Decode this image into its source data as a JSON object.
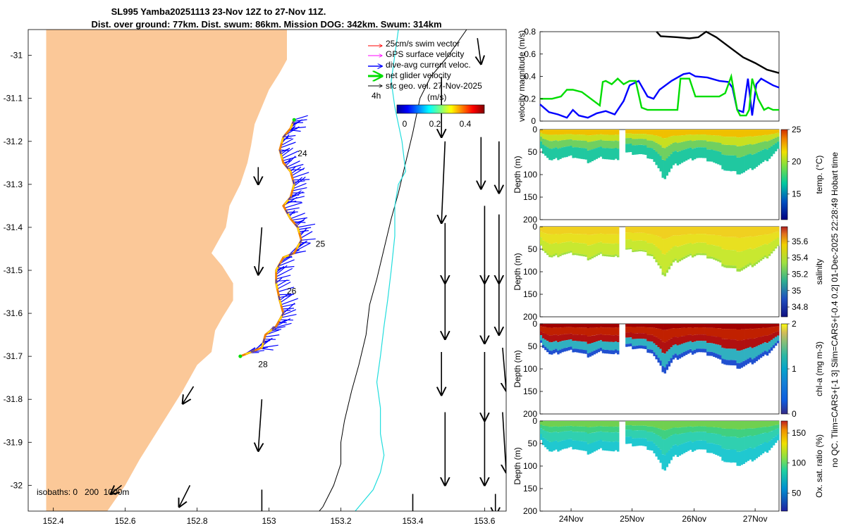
{
  "title_line1": "SL995 Yamba20251113 23-Nov 12Z to 27-Nov 11Z.",
  "title_line2": "Dist. over ground: 77km. Dist. swum: 86km. Mission DOG: 342km. Swum: 314km",
  "side_label_top": "no QC. Tlim=CARS+[-1 3] Slim=CARS+[-0.4 0.2] 01-Dec-2025 22:28:49 Hobart time",
  "colors": {
    "land": "#fbc898",
    "track_blue": "#0000ff",
    "track_green": "#00dd00",
    "track_orange": "#f08000",
    "track_yellow": "#ffee00",
    "isobath_200": "#000000",
    "isobath_1000": "#22dddd",
    "swim_vector": "#ff0000",
    "gps_vector": "#ff00ff",
    "current_vector": "#0000ff",
    "net_vector": "#00dd00",
    "geo_vector": "#000000"
  },
  "chart_data": [
    {
      "type": "scatter",
      "name": "map",
      "xlabel": "",
      "ylabel": "",
      "xlim": [
        152.33,
        153.66
      ],
      "ylim": [
        -32.06,
        -30.94
      ],
      "x_ticks": [
        "152.4",
        "152.6",
        "152.8",
        "153",
        "153.2",
        "153.4",
        "153.6"
      ],
      "x_tick_values": [
        152.4,
        152.6,
        152.8,
        153.0,
        153.2,
        153.4,
        153.6
      ],
      "y_ticks": [
        "-31",
        "-31.1",
        "-31.2",
        "-31.3",
        "-31.4",
        "-31.5",
        "-31.6",
        "-31.7",
        "-31.8",
        "-31.9",
        "-32"
      ],
      "y_tick_values": [
        -31,
        -31.1,
        -31.2,
        -31.3,
        -31.4,
        -31.5,
        -31.6,
        -31.7,
        -31.8,
        -31.9,
        -32
      ],
      "coastline": [
        [
          152.38,
          -30.94
        ],
        [
          152.38,
          -32.06
        ],
        [
          152.55,
          -32.06
        ],
        [
          152.6,
          -32.0
        ],
        [
          152.64,
          -31.94
        ],
        [
          152.7,
          -31.86
        ],
        [
          152.76,
          -31.78
        ],
        [
          152.8,
          -31.72
        ],
        [
          152.84,
          -31.69
        ],
        [
          152.85,
          -31.64
        ],
        [
          152.87,
          -31.61
        ],
        [
          152.9,
          -31.57
        ],
        [
          152.9,
          -31.53
        ],
        [
          152.87,
          -31.49
        ],
        [
          152.84,
          -31.46
        ],
        [
          152.86,
          -31.43
        ],
        [
          152.88,
          -31.4
        ],
        [
          152.89,
          -31.35
        ],
        [
          152.92,
          -31.3
        ],
        [
          152.94,
          -31.25
        ],
        [
          152.95,
          -31.21
        ],
        [
          152.96,
          -31.16
        ],
        [
          152.98,
          -31.12
        ],
        [
          153.0,
          -31.08
        ],
        [
          153.03,
          -31.04
        ],
        [
          153.05,
          -31.01
        ],
        [
          153.05,
          -30.94
        ]
      ],
      "isobath_200": [
        [
          153.55,
          -30.94
        ],
        [
          153.5,
          -31.0
        ],
        [
          153.45,
          -31.05
        ],
        [
          153.42,
          -31.1
        ],
        [
          153.4,
          -31.18
        ],
        [
          153.38,
          -31.25
        ],
        [
          153.36,
          -31.32
        ],
        [
          153.34,
          -31.38
        ],
        [
          153.32,
          -31.45
        ],
        [
          153.3,
          -31.52
        ],
        [
          153.28,
          -31.58
        ],
        [
          153.27,
          -31.65
        ],
        [
          153.25,
          -31.72
        ],
        [
          153.23,
          -31.78
        ],
        [
          153.21,
          -31.85
        ],
        [
          153.2,
          -31.9
        ],
        [
          153.2,
          -31.95
        ],
        [
          153.18,
          -32.0
        ],
        [
          153.15,
          -32.05
        ],
        [
          153.14,
          -32.06
        ]
      ],
      "isobath_1000": [
        [
          153.36,
          -30.94
        ],
        [
          153.35,
          -31.0
        ],
        [
          153.34,
          -31.06
        ],
        [
          153.35,
          -31.12
        ],
        [
          153.37,
          -31.2
        ],
        [
          153.38,
          -31.27
        ],
        [
          153.36,
          -31.3
        ],
        [
          153.35,
          -31.35
        ],
        [
          153.35,
          -31.42
        ],
        [
          153.34,
          -31.5
        ],
        [
          153.33,
          -31.57
        ],
        [
          153.32,
          -31.63
        ],
        [
          153.31,
          -31.7
        ],
        [
          153.3,
          -31.76
        ],
        [
          153.31,
          -31.82
        ],
        [
          153.31,
          -31.88
        ],
        [
          153.32,
          -31.93
        ],
        [
          153.31,
          -31.97
        ],
        [
          153.29,
          -32.01
        ],
        [
          153.25,
          -32.05
        ],
        [
          153.24,
          -32.06
        ]
      ],
      "glider_track": [
        [
          153.07,
          -31.15
        ],
        [
          153.06,
          -31.17
        ],
        [
          153.04,
          -31.19
        ],
        [
          153.03,
          -31.22
        ],
        [
          153.04,
          -31.25
        ],
        [
          153.06,
          -31.27
        ],
        [
          153.07,
          -31.3
        ],
        [
          153.06,
          -31.33
        ],
        [
          153.04,
          -31.35
        ],
        [
          153.06,
          -31.38
        ],
        [
          153.08,
          -31.4
        ],
        [
          153.09,
          -31.43
        ],
        [
          153.07,
          -31.46
        ],
        [
          153.04,
          -31.47
        ],
        [
          153.02,
          -31.5
        ],
        [
          153.02,
          -31.53
        ],
        [
          153.03,
          -31.57
        ],
        [
          153.04,
          -31.6
        ],
        [
          153.02,
          -31.63
        ],
        [
          152.99,
          -31.65
        ],
        [
          152.98,
          -31.68
        ],
        [
          152.95,
          -31.69
        ],
        [
          152.92,
          -31.7
        ]
      ],
      "track_labels": [
        {
          "lon": 153.08,
          "lat": -31.235,
          "text": "24"
        },
        {
          "lon": 153.13,
          "lat": -31.445,
          "text": "25"
        },
        {
          "lon": 153.05,
          "lat": -31.555,
          "text": "26"
        },
        {
          "lon": 152.97,
          "lat": -31.725,
          "text": "28"
        }
      ],
      "geo_arrows": [
        [
          152.97,
          -31.26,
          0.0,
          -0.04
        ],
        [
          153.48,
          -31.05,
          0.0,
          -0.14
        ],
        [
          153.58,
          -30.96,
          0.01,
          -0.06
        ],
        [
          153.49,
          -31.2,
          -0.01,
          -0.19
        ],
        [
          153.59,
          -31.19,
          0.0,
          -0.12
        ],
        [
          153.64,
          -31.2,
          0.0,
          -0.12
        ],
        [
          152.98,
          -31.4,
          -0.01,
          -0.11
        ],
        [
          153.49,
          -31.39,
          0.0,
          -0.14
        ],
        [
          153.6,
          -31.35,
          0.0,
          -0.18
        ],
        [
          153.64,
          -31.37,
          0.0,
          -0.16
        ],
        [
          153.49,
          -31.52,
          0.0,
          -0.14
        ],
        [
          153.6,
          -31.51,
          0.0,
          -0.16
        ],
        [
          153.64,
          -31.51,
          0.0,
          -0.14
        ],
        [
          153.48,
          -31.69,
          0.0,
          -0.1
        ],
        [
          153.6,
          -31.69,
          0.0,
          -0.16
        ],
        [
          153.65,
          -31.68,
          0.01,
          -0.1
        ],
        [
          152.79,
          -31.77,
          -0.03,
          -0.04
        ],
        [
          152.98,
          -31.8,
          -0.01,
          -0.12
        ],
        [
          153.49,
          -31.83,
          0.0,
          -0.17
        ],
        [
          153.6,
          -31.83,
          0.0,
          -0.17
        ],
        [
          153.65,
          -31.83,
          0.01,
          -0.14
        ],
        [
          152.78,
          -32.0,
          -0.03,
          -0.05
        ],
        [
          152.59,
          -32.0,
          -0.03,
          -0.02
        ],
        [
          152.98,
          -32.01,
          0.0,
          -0.12
        ],
        [
          153.4,
          -32.02,
          0.0,
          -0.06
        ],
        [
          153.63,
          -32.02,
          0.0,
          -0.05
        ]
      ],
      "colorbar_title": "(m/s)",
      "colorbar_ticks": [
        "0",
        "0.2",
        "0.4"
      ],
      "legend": [
        "25cm/s swim vector",
        "GPS surface velocity",
        "dive-avg current veloc.",
        "net glider velocity",
        "sfc geo. vel. 27-Nov-2025"
      ],
      "legend_extra": "4h",
      "isobath_note": "isobaths: 0   200  1000m"
    },
    {
      "type": "line",
      "name": "velocity",
      "ylabel": "velocity magnitude (m/s)",
      "ylim": [
        0,
        0.8
      ],
      "y_ticks": [
        "0",
        "0.2",
        "0.4",
        "0.6",
        "0.8"
      ],
      "xlim": [
        0,
        4
      ],
      "series": [
        {
          "name": "sfc geo",
          "color": "#000000",
          "x": [
            1.95,
            2.02,
            2.3,
            2.5,
            2.65,
            2.78,
            2.95,
            3.2,
            3.4,
            3.6,
            3.8,
            4.0
          ],
          "y": [
            0.8,
            0.76,
            0.75,
            0.74,
            0.75,
            0.8,
            0.75,
            0.65,
            0.57,
            0.52,
            0.46,
            0.43
          ]
        },
        {
          "name": "dive-avg current",
          "color": "#0000ff",
          "x": [
            0.0,
            0.15,
            0.3,
            0.45,
            0.55,
            0.65,
            0.8,
            0.95,
            1.1,
            1.25,
            1.4,
            1.5,
            1.65,
            1.8,
            1.9,
            2.0,
            2.2,
            2.4,
            2.5,
            2.6,
            2.8,
            3.0,
            3.15,
            3.22,
            3.3,
            3.4,
            3.48,
            3.55,
            3.62,
            3.7,
            3.8,
            3.9,
            4.0
          ],
          "y": [
            0.15,
            0.08,
            0.06,
            0.03,
            0.1,
            0.05,
            0.03,
            0.07,
            0.09,
            0.06,
            0.18,
            0.32,
            0.36,
            0.22,
            0.2,
            0.28,
            0.36,
            0.42,
            0.43,
            0.4,
            0.39,
            0.36,
            0.35,
            0.3,
            0.1,
            0.08,
            0.38,
            0.05,
            0.33,
            0.38,
            0.35,
            0.32,
            0.3
          ]
        },
        {
          "name": "net glider",
          "color": "#00dd00",
          "x": [
            0.0,
            0.2,
            0.35,
            0.45,
            0.55,
            0.7,
            0.9,
            1.0,
            1.05,
            1.1,
            1.2,
            1.3,
            1.4,
            1.5,
            1.6,
            1.7,
            1.8,
            2.0,
            2.15,
            2.3,
            2.35,
            2.5,
            2.6,
            2.8,
            3.0,
            3.1,
            3.2,
            3.3,
            3.35,
            3.45,
            3.5,
            3.55,
            3.65,
            3.75,
            3.82,
            3.9,
            4.0
          ],
          "y": [
            0.2,
            0.2,
            0.22,
            0.28,
            0.28,
            0.26,
            0.18,
            0.14,
            0.35,
            0.36,
            0.33,
            0.38,
            0.33,
            0.36,
            0.36,
            0.12,
            0.1,
            0.1,
            0.1,
            0.1,
            0.38,
            0.38,
            0.22,
            0.22,
            0.22,
            0.25,
            0.4,
            0.1,
            0.05,
            0.05,
            0.1,
            0.38,
            0.2,
            0.1,
            0.12,
            0.1,
            0.1
          ]
        }
      ]
    },
    {
      "type": "heatmap",
      "name": "temperature",
      "ylabel": "Depth (m)",
      "y_ticks": [
        "0",
        "50",
        "100",
        "150",
        "200"
      ],
      "colorbar_label": "temp. (°C)",
      "colorbar_ticks": [
        "15",
        "20",
        "25"
      ],
      "clim": [
        11,
        25
      ]
    },
    {
      "type": "heatmap",
      "name": "salinity",
      "ylabel": "Depth (m)",
      "y_ticks": [
        "0",
        "50",
        "100",
        "150",
        "200"
      ],
      "colorbar_label": "salinity",
      "colorbar_ticks": [
        "34.8",
        "35",
        "35.2",
        "35.4",
        "35.6"
      ],
      "clim": [
        34.68,
        35.78
      ]
    },
    {
      "type": "heatmap",
      "name": "chlorophyll",
      "ylabel": "Depth (m)",
      "y_ticks": [
        "0",
        "50",
        "100",
        "150",
        "200"
      ],
      "colorbar_label": "chl-a (mg m-3)",
      "colorbar_ticks": [
        "0",
        "1",
        "2"
      ],
      "clim": [
        0,
        2
      ]
    },
    {
      "type": "heatmap",
      "name": "oxygen",
      "ylabel": "Depth (m)",
      "y_ticks": [
        "0",
        "50",
        "100",
        "150",
        "200"
      ],
      "colorbar_label": "Ox. sat. ratio (%)",
      "colorbar_ticks": [
        "50",
        "100",
        "150"
      ],
      "clim": [
        20,
        170
      ],
      "x_ticks": [
        "24Nov",
        "25Nov",
        "26Nov",
        "27Nov"
      ]
    }
  ]
}
